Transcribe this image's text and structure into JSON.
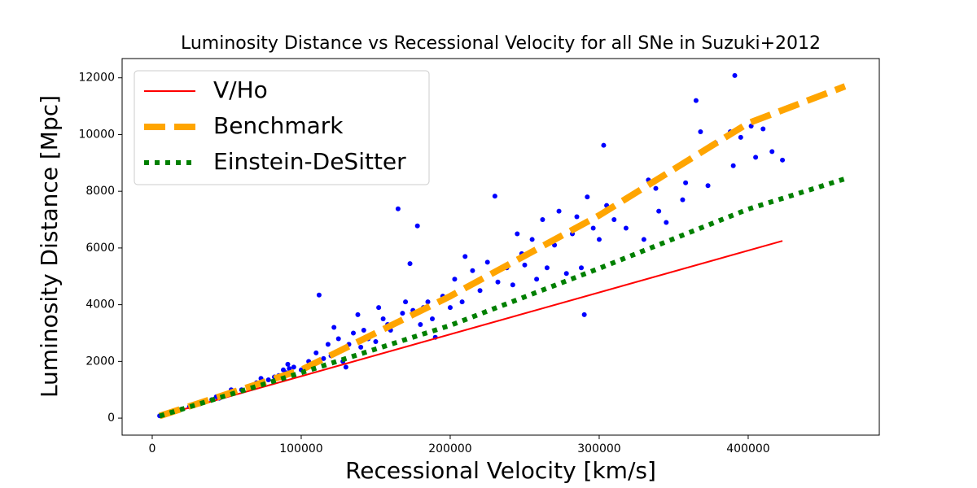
{
  "chart_data": {
    "type": "line",
    "title": "Luminosity Distance vs Recessional Velocity for all SNe in Suzuki+2012",
    "xlabel": "Recessional Velocity [km/s]",
    "ylabel": "Luminosity Distance [Mpc]",
    "xlim": [
      -20200,
      488000
    ],
    "ylim": [
      -600,
      12680
    ],
    "xticks": [
      0,
      100000,
      200000,
      300000,
      400000
    ],
    "yticks": [
      0,
      2000,
      4000,
      6000,
      8000,
      10000,
      12000
    ],
    "grid": false,
    "legend": "upper left",
    "series": [
      {
        "type": "scatter",
        "color": "#0000ff",
        "x": [
          5000,
          10000,
          15000,
          20000,
          25000,
          28000,
          32000,
          40000,
          43000,
          45000,
          50000,
          53000,
          55000,
          60000,
          65000,
          70000,
          73000,
          78000,
          82000,
          85000,
          88000,
          90000,
          91000,
          92000,
          93000,
          95000,
          100000,
          105000,
          110000,
          112000,
          115000,
          118000,
          120000,
          122000,
          125000,
          128000,
          130000,
          132000,
          135000,
          138000,
          140000,
          142000,
          145000,
          150000,
          152000,
          155000,
          158000,
          160000,
          165000,
          168000,
          170000,
          173000,
          175000,
          178000,
          180000,
          182000,
          185000,
          188000,
          190000,
          195000,
          200000,
          203000,
          208000,
          210000,
          215000,
          220000,
          225000,
          230000,
          232000,
          238000,
          242000,
          245000,
          248000,
          250000,
          255000,
          258000,
          262000,
          265000,
          270000,
          273000,
          278000,
          282000,
          285000,
          288000,
          290000,
          292000,
          296000,
          300000,
          303000,
          305000,
          310000,
          318000,
          330000,
          333000,
          338000,
          340000,
          345000,
          356000,
          358000,
          365000,
          368000,
          373000,
          378000,
          388000,
          390000,
          391000,
          395000,
          402000,
          405000,
          410000,
          416000,
          423000
        ],
        "values": [
          80,
          160,
          250,
          320,
          400,
          450,
          500,
          650,
          750,
          700,
          800,
          1000,
          900,
          1000,
          1100,
          1250,
          1400,
          1350,
          1450,
          1500,
          1700,
          1600,
          1900,
          1750,
          1550,
          1800,
          1700,
          2000,
          2300,
          4340,
          2100,
          2600,
          2200,
          3200,
          2800,
          2000,
          1800,
          2600,
          3000,
          3650,
          2500,
          3100,
          2800,
          2700,
          3900,
          3500,
          3300,
          3100,
          7380,
          3700,
          4100,
          5450,
          3800,
          6780,
          3300,
          3900,
          4100,
          3500,
          2850,
          4300,
          3900,
          4900,
          4100,
          5700,
          5200,
          4500,
          5500,
          7830,
          4800,
          5300,
          4700,
          6500,
          5800,
          5400,
          6300,
          4900,
          7000,
          5300,
          6100,
          7300,
          5100,
          6500,
          7100,
          5300,
          3650,
          7800,
          6700,
          6300,
          9620,
          7500,
          7000,
          6700,
          6300,
          8400,
          8100,
          7300,
          6900,
          7700,
          8300,
          11200,
          10100,
          8200,
          9700,
          10100,
          8900,
          12080,
          9900,
          10300,
          9200,
          10200,
          9400,
          9100
        ]
      },
      {
        "type": "line",
        "name": "V/Ho",
        "color": "#ff0000",
        "dash": "solid",
        "x": [
          5000,
          423000
        ],
        "values": [
          74,
          6250
        ]
      },
      {
        "type": "line",
        "name": "Benchmark",
        "color": "#ffa500",
        "dash": "dashed",
        "x": [
          5000,
          100000,
          200000,
          300000,
          400000,
          465000
        ],
        "values": [
          75,
          1700,
          4300,
          7150,
          10400,
          11700
        ]
      },
      {
        "type": "line",
        "name": "Einstein-DeSitter",
        "color": "#008000",
        "dash": "dotted",
        "x": [
          5000,
          100000,
          200000,
          300000,
          400000,
          465000
        ],
        "values": [
          75,
          1600,
          3270,
          5280,
          7370,
          8440
        ]
      }
    ]
  }
}
